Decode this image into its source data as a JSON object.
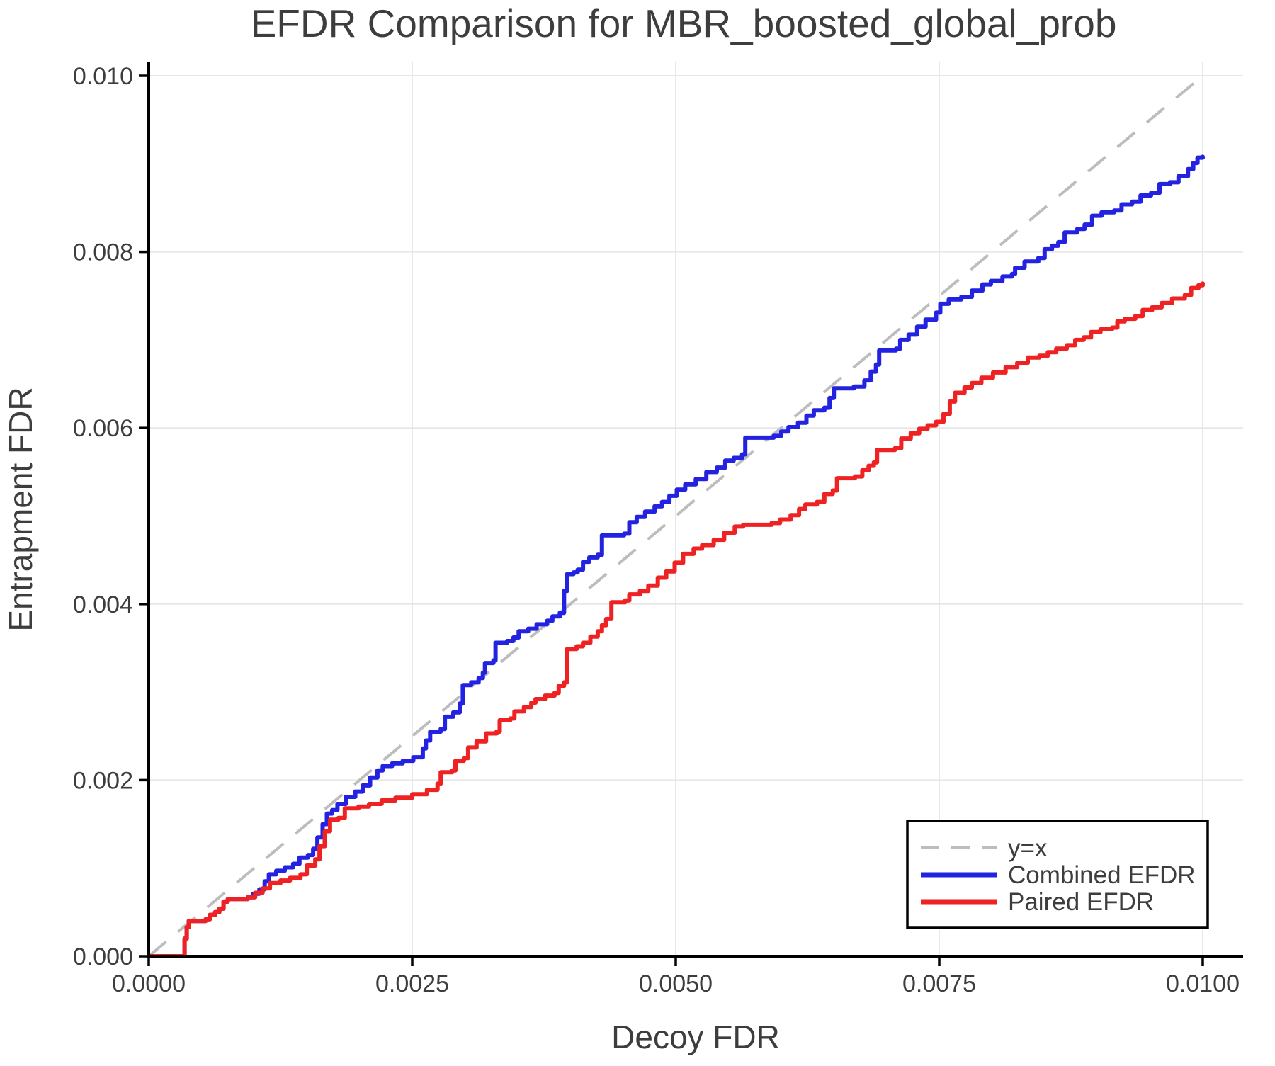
{
  "title": "EFDR Comparison for MBR_boosted_global_prob",
  "axes": {
    "xlabel": "Decoy FDR",
    "ylabel": "Entrapment FDR",
    "x_tick_labels": [
      "0.0000",
      "0.0025",
      "0.0050",
      "0.0075",
      "0.0100"
    ],
    "x_tick_values": [
      0,
      0.0025,
      0.005,
      0.0075,
      0.01
    ],
    "y_tick_labels": [
      "0.000",
      "0.002",
      "0.004",
      "0.006",
      "0.008",
      "0.010"
    ],
    "y_tick_values": [
      0,
      0.002,
      0.004,
      0.006,
      0.008,
      0.01
    ]
  },
  "legend": {
    "items": [
      {
        "label": "y=x",
        "color": "#bdbdbd",
        "dashed": true
      },
      {
        "label": "Combined EFDR",
        "color": "#2222e0",
        "dashed": false
      },
      {
        "label": "Paired EFDR",
        "color": "#ee2222",
        "dashed": false
      }
    ]
  },
  "colors": {
    "combined": "#2222e0",
    "paired": "#ee2222",
    "diagonal": "#bdbdbd",
    "grid": "#e7e7e7",
    "axis": "#000000",
    "text": "#3d3d3d",
    "background": "#ffffff"
  },
  "chart_data": {
    "type": "line",
    "title": "EFDR Comparison for MBR_boosted_global_prob",
    "xlabel": "Decoy FDR",
    "ylabel": "Entrapment FDR",
    "xlim": [
      0,
      0.01
    ],
    "ylim": [
      0,
      0.01
    ],
    "grid": true,
    "legend_position": "lower right",
    "series": [
      {
        "name": "y=x",
        "style": "dashed",
        "color": "#bdbdbd",
        "points": [
          [
            0,
            0
          ],
          [
            0.01,
            0.01
          ]
        ]
      },
      {
        "name": "Combined EFDR",
        "style": "step",
        "color": "#2222e0",
        "points": [
          [
            0,
            0
          ],
          [
            0.00032,
            0
          ],
          [
            0.00034,
            0.0002
          ],
          [
            0.00036,
            0.00033
          ],
          [
            0.00038,
            0.0004
          ],
          [
            0.00054,
            0.00042
          ],
          [
            0.00058,
            0.00047
          ],
          [
            0.00063,
            0.0005
          ],
          [
            0.00067,
            0.00054
          ],
          [
            0.00071,
            0.00062
          ],
          [
            0.00075,
            0.00065
          ],
          [
            0.00094,
            0.00067
          ],
          [
            0.00099,
            0.00071
          ],
          [
            0.00105,
            0.00076
          ],
          [
            0.0011,
            0.00085
          ],
          [
            0.00114,
            0.00093
          ],
          [
            0.00121,
            0.00097
          ],
          [
            0.00129,
            0.00101
          ],
          [
            0.00137,
            0.00105
          ],
          [
            0.00143,
            0.00112
          ],
          [
            0.00151,
            0.00115
          ],
          [
            0.00156,
            0.00122
          ],
          [
            0.0016,
            0.00135
          ],
          [
            0.00165,
            0.0015
          ],
          [
            0.00169,
            0.00162
          ],
          [
            0.00174,
            0.00166
          ],
          [
            0.00179,
            0.00173
          ],
          [
            0.00187,
            0.00181
          ],
          [
            0.00196,
            0.00187
          ],
          [
            0.00203,
            0.00194
          ],
          [
            0.0021,
            0.00203
          ],
          [
            0.00217,
            0.00211
          ],
          [
            0.00222,
            0.00216
          ],
          [
            0.00231,
            0.00219
          ],
          [
            0.00241,
            0.00222
          ],
          [
            0.00251,
            0.00226
          ],
          [
            0.0026,
            0.00236
          ],
          [
            0.00263,
            0.00245
          ],
          [
            0.00267,
            0.00255
          ],
          [
            0.00277,
            0.00258
          ],
          [
            0.00281,
            0.00272
          ],
          [
            0.00289,
            0.00277
          ],
          [
            0.00295,
            0.00287
          ],
          [
            0.00298,
            0.00308
          ],
          [
            0.00306,
            0.00311
          ],
          [
            0.00313,
            0.00316
          ],
          [
            0.00317,
            0.00322
          ],
          [
            0.00319,
            0.00333
          ],
          [
            0.00327,
            0.00336
          ],
          [
            0.00329,
            0.00356
          ],
          [
            0.0034,
            0.00358
          ],
          [
            0.00346,
            0.00362
          ],
          [
            0.00351,
            0.00369
          ],
          [
            0.0036,
            0.00372
          ],
          [
            0.00368,
            0.00377
          ],
          [
            0.00378,
            0.00381
          ],
          [
            0.00383,
            0.00386
          ],
          [
            0.0039,
            0.0039
          ],
          [
            0.00394,
            0.00415
          ],
          [
            0.00397,
            0.00434
          ],
          [
            0.00403,
            0.00436
          ],
          [
            0.00407,
            0.00439
          ],
          [
            0.00412,
            0.00448
          ],
          [
            0.00418,
            0.00453
          ],
          [
            0.00426,
            0.00456
          ],
          [
            0.0043,
            0.00478
          ],
          [
            0.00451,
            0.0048
          ],
          [
            0.00456,
            0.00493
          ],
          [
            0.00463,
            0.00499
          ],
          [
            0.00471,
            0.00505
          ],
          [
            0.0048,
            0.00511
          ],
          [
            0.00487,
            0.00516
          ],
          [
            0.00494,
            0.00523
          ],
          [
            0.00501,
            0.0053
          ],
          [
            0.00509,
            0.00536
          ],
          [
            0.00519,
            0.00542
          ],
          [
            0.00529,
            0.0055
          ],
          [
            0.00539,
            0.00555
          ],
          [
            0.00547,
            0.00563
          ],
          [
            0.00555,
            0.00566
          ],
          [
            0.00563,
            0.0057
          ],
          [
            0.00566,
            0.00589
          ],
          [
            0.00593,
            0.00591
          ],
          [
            0.006,
            0.00596
          ],
          [
            0.00607,
            0.00601
          ],
          [
            0.00616,
            0.00606
          ],
          [
            0.00624,
            0.00614
          ],
          [
            0.00631,
            0.0062
          ],
          [
            0.00641,
            0.00623
          ],
          [
            0.00646,
            0.00634
          ],
          [
            0.0065,
            0.00645
          ],
          [
            0.00669,
            0.00647
          ],
          [
            0.00679,
            0.00654
          ],
          [
            0.00685,
            0.00664
          ],
          [
            0.0069,
            0.00672
          ],
          [
            0.00693,
            0.00688
          ],
          [
            0.00709,
            0.0069
          ],
          [
            0.00713,
            0.007
          ],
          [
            0.00721,
            0.00706
          ],
          [
            0.00729,
            0.00715
          ],
          [
            0.00737,
            0.00723
          ],
          [
            0.00747,
            0.00731
          ],
          [
            0.00751,
            0.00741
          ],
          [
            0.00759,
            0.00746
          ],
          [
            0.00771,
            0.00749
          ],
          [
            0.00781,
            0.00756
          ],
          [
            0.00791,
            0.00763
          ],
          [
            0.00799,
            0.00767
          ],
          [
            0.0081,
            0.00772
          ],
          [
            0.00819,
            0.00775
          ],
          [
            0.00822,
            0.00782
          ],
          [
            0.00831,
            0.00789
          ],
          [
            0.00844,
            0.00793
          ],
          [
            0.0085,
            0.00803
          ],
          [
            0.00857,
            0.00807
          ],
          [
            0.00863,
            0.00811
          ],
          [
            0.00869,
            0.00822
          ],
          [
            0.00881,
            0.00826
          ],
          [
            0.00888,
            0.00831
          ],
          [
            0.00895,
            0.00841
          ],
          [
            0.00904,
            0.00845
          ],
          [
            0.00916,
            0.00847
          ],
          [
            0.00923,
            0.00854
          ],
          [
            0.00933,
            0.00857
          ],
          [
            0.00941,
            0.00864
          ],
          [
            0.00951,
            0.00867
          ],
          [
            0.00959,
            0.00877
          ],
          [
            0.00969,
            0.00879
          ],
          [
            0.00977,
            0.00886
          ],
          [
            0.00986,
            0.00894
          ],
          [
            0.00991,
            0.00901
          ],
          [
            0.00995,
            0.00907
          ],
          [
            0.01,
            0.00908
          ]
        ]
      },
      {
        "name": "Paired EFDR",
        "style": "step",
        "color": "#ee2222",
        "points": [
          [
            0,
            0
          ],
          [
            0.00032,
            0
          ],
          [
            0.00034,
            0.0002
          ],
          [
            0.00036,
            0.00033
          ],
          [
            0.00038,
            0.0004
          ],
          [
            0.00054,
            0.00042
          ],
          [
            0.00058,
            0.00047
          ],
          [
            0.00063,
            0.0005
          ],
          [
            0.00067,
            0.00054
          ],
          [
            0.00071,
            0.00062
          ],
          [
            0.00075,
            0.00065
          ],
          [
            0.00094,
            0.00067
          ],
          [
            0.00101,
            0.00072
          ],
          [
            0.00108,
            0.00077
          ],
          [
            0.00115,
            0.00083
          ],
          [
            0.00125,
            0.00086
          ],
          [
            0.00134,
            0.00089
          ],
          [
            0.00144,
            0.00093
          ],
          [
            0.0015,
            0.00103
          ],
          [
            0.00158,
            0.0011
          ],
          [
            0.00162,
            0.00125
          ],
          [
            0.00167,
            0.00142
          ],
          [
            0.00172,
            0.00155
          ],
          [
            0.0018,
            0.00157
          ],
          [
            0.00186,
            0.00168
          ],
          [
            0.00199,
            0.0017
          ],
          [
            0.00209,
            0.00173
          ],
          [
            0.00221,
            0.00177
          ],
          [
            0.00234,
            0.0018
          ],
          [
            0.0025,
            0.00184
          ],
          [
            0.00264,
            0.00189
          ],
          [
            0.00274,
            0.00196
          ],
          [
            0.00277,
            0.00209
          ],
          [
            0.00288,
            0.00211
          ],
          [
            0.00291,
            0.00222
          ],
          [
            0.00299,
            0.00225
          ],
          [
            0.00303,
            0.00237
          ],
          [
            0.00311,
            0.00244
          ],
          [
            0.0032,
            0.00253
          ],
          [
            0.0033,
            0.00255
          ],
          [
            0.00333,
            0.00268
          ],
          [
            0.00343,
            0.0027
          ],
          [
            0.00347,
            0.00278
          ],
          [
            0.00356,
            0.00283
          ],
          [
            0.00363,
            0.00288
          ],
          [
            0.00367,
            0.00292
          ],
          [
            0.00376,
            0.00296
          ],
          [
            0.00385,
            0.00299
          ],
          [
            0.00389,
            0.00307
          ],
          [
            0.00394,
            0.00311
          ],
          [
            0.00397,
            0.00349
          ],
          [
            0.00406,
            0.00352
          ],
          [
            0.00412,
            0.00356
          ],
          [
            0.00419,
            0.00363
          ],
          [
            0.00426,
            0.00369
          ],
          [
            0.0043,
            0.00376
          ],
          [
            0.00434,
            0.00383
          ],
          [
            0.00439,
            0.00402
          ],
          [
            0.00452,
            0.00404
          ],
          [
            0.00456,
            0.00411
          ],
          [
            0.00466,
            0.00415
          ],
          [
            0.00474,
            0.00421
          ],
          [
            0.00483,
            0.0043
          ],
          [
            0.00491,
            0.00437
          ],
          [
            0.00499,
            0.00447
          ],
          [
            0.00507,
            0.00457
          ],
          [
            0.00517,
            0.00463
          ],
          [
            0.00525,
            0.00467
          ],
          [
            0.00536,
            0.00473
          ],
          [
            0.00546,
            0.00481
          ],
          [
            0.00556,
            0.00488
          ],
          [
            0.00564,
            0.0049
          ],
          [
            0.00591,
            0.00492
          ],
          [
            0.00599,
            0.00496
          ],
          [
            0.00609,
            0.00501
          ],
          [
            0.00617,
            0.00508
          ],
          [
            0.00623,
            0.00513
          ],
          [
            0.00634,
            0.00516
          ],
          [
            0.00641,
            0.00525
          ],
          [
            0.00649,
            0.00529
          ],
          [
            0.00653,
            0.00543
          ],
          [
            0.0067,
            0.00545
          ],
          [
            0.00677,
            0.00552
          ],
          [
            0.00683,
            0.00557
          ],
          [
            0.00688,
            0.00561
          ],
          [
            0.00691,
            0.00575
          ],
          [
            0.00708,
            0.00577
          ],
          [
            0.00714,
            0.00588
          ],
          [
            0.00723,
            0.00594
          ],
          [
            0.00731,
            0.00599
          ],
          [
            0.00739,
            0.00603
          ],
          [
            0.00747,
            0.00607
          ],
          [
            0.00754,
            0.00616
          ],
          [
            0.0076,
            0.0063
          ],
          [
            0.00765,
            0.0064
          ],
          [
            0.00774,
            0.00646
          ],
          [
            0.00781,
            0.00651
          ],
          [
            0.0079,
            0.00657
          ],
          [
            0.00801,
            0.00663
          ],
          [
            0.00813,
            0.00669
          ],
          [
            0.00824,
            0.00674
          ],
          [
            0.00834,
            0.0068
          ],
          [
            0.00845,
            0.00682
          ],
          [
            0.00853,
            0.00686
          ],
          [
            0.00861,
            0.0069
          ],
          [
            0.00871,
            0.00694
          ],
          [
            0.00879,
            0.007
          ],
          [
            0.00887,
            0.00703
          ],
          [
            0.00894,
            0.00709
          ],
          [
            0.00903,
            0.00712
          ],
          [
            0.00914,
            0.00714
          ],
          [
            0.00919,
            0.00721
          ],
          [
            0.00926,
            0.00724
          ],
          [
            0.00936,
            0.00727
          ],
          [
            0.00943,
            0.00734
          ],
          [
            0.00952,
            0.00737
          ],
          [
            0.00961,
            0.00742
          ],
          [
            0.00971,
            0.00747
          ],
          [
            0.00983,
            0.00751
          ],
          [
            0.00989,
            0.00759
          ],
          [
            0.00996,
            0.00762
          ],
          [
            0.01,
            0.00764
          ]
        ]
      }
    ]
  }
}
